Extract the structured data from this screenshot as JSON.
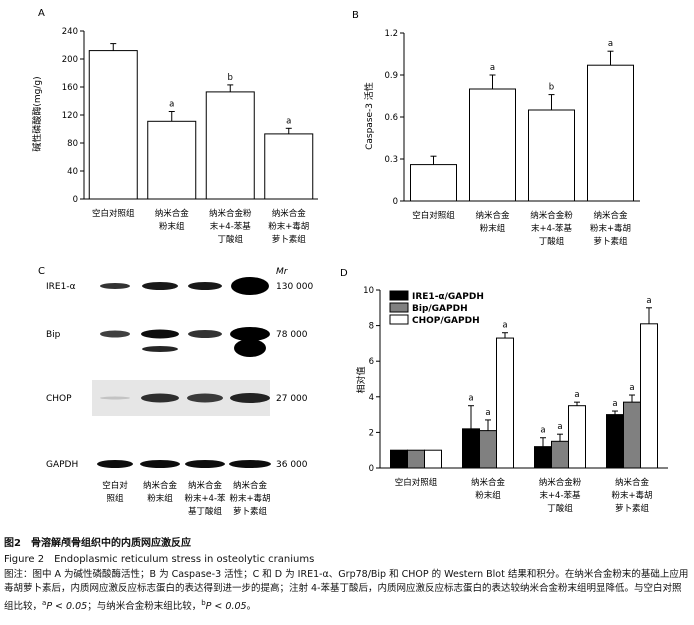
{
  "panels": {
    "A": {
      "letter": "A",
      "ylabel": "碱性磷酸酶(mg/g)",
      "chart_data": {
        "type": "bar",
        "ylabel": "碱性磷酸酶(mg/g)",
        "ylim": [
          0,
          240
        ],
        "yticks": [
          "0",
          "40",
          "80",
          "120",
          "160",
          "200",
          "240"
        ],
        "categories": [
          "空白对照组",
          "纳米合金粉末组",
          "纳米合金粉末+4-苯基丁酸组",
          "纳米合金粉末+毒胡萝卜素组"
        ],
        "category_lines": [
          [
            "空白对照组"
          ],
          [
            "纳米合金",
            "粉末组"
          ],
          [
            "纳米合金粉",
            "末+4-苯基",
            "丁酸组"
          ],
          [
            "纳米合金",
            "粉末+毒胡",
            "萝卜素组"
          ]
        ],
        "values": [
          212,
          111,
          153,
          93
        ],
        "errors": [
          10,
          14,
          10,
          8
        ],
        "markers": [
          "",
          "a",
          "b",
          "a"
        ]
      }
    },
    "B": {
      "letter": "B",
      "ylabel": "Caspase-3 活性",
      "chart_data": {
        "type": "bar",
        "ylabel": "Caspase-3 活性",
        "ylim": [
          0,
          1.2
        ],
        "yticks": [
          "0",
          "0.3",
          "0.6",
          "0.9",
          "1.2"
        ],
        "categories": [
          "空白对照组",
          "纳米合金粉末组",
          "纳米合金粉末+4-苯基丁酸组",
          "纳米合金粉末+毒胡萝卜素组"
        ],
        "category_lines": [
          [
            "空白对照组"
          ],
          [
            "纳米合金",
            "粉末组"
          ],
          [
            "纳米合金粉",
            "末+4-苯基",
            "丁酸组"
          ],
          [
            "纳米合金",
            "粉末+毒胡",
            "萝卜素组"
          ]
        ],
        "values": [
          0.26,
          0.8,
          0.65,
          0.97
        ],
        "errors": [
          0.06,
          0.1,
          0.11,
          0.1
        ],
        "markers": [
          "",
          "a",
          "b",
          "a"
        ]
      }
    },
    "C": {
      "letter": "C",
      "mr_label": "Mr",
      "proteins": [
        {
          "name": "IRE1-α",
          "mw": "130 000"
        },
        {
          "name": "Bip",
          "mw": "78 000"
        },
        {
          "name": "CHOP",
          "mw": "27 000"
        },
        {
          "name": "GAPDH",
          "mw": "36 000"
        }
      ],
      "lanes": [
        [
          "空白对",
          "照组"
        ],
        [
          "纳米合金",
          "粉末组"
        ],
        [
          "纳米合金",
          "粉末+4-苯",
          "基丁酸组"
        ],
        [
          "纳米合金",
          "粉末+毒胡",
          "萝卜素组"
        ]
      ]
    },
    "D": {
      "letter": "D",
      "ylabel": "相对值",
      "chart_data": {
        "type": "bar",
        "ylabel": "相对值",
        "ylim": [
          0,
          10
        ],
        "yticks": [
          "0",
          "2",
          "4",
          "6",
          "8",
          "10"
        ],
        "categories": [
          "空白对照组",
          "纳米合金粉末组",
          "纳米合金粉末+4-苯基丁酸组",
          "纳米合金粉末+毒胡萝卜素组"
        ],
        "category_lines": [
          [
            "空白对照组"
          ],
          [
            "纳米合金",
            "粉末组"
          ],
          [
            "纳米合金粉",
            "末+4-苯基",
            "丁酸组"
          ],
          [
            "纳米合金",
            "粉末+毒胡",
            "萝卜素组"
          ]
        ],
        "series": [
          {
            "name": "IRE1-α/GAPDH",
            "color": "#000000",
            "values": [
              1.0,
              2.2,
              1.2,
              3.0
            ],
            "errors": [
              0,
              1.3,
              0.5,
              0.2
            ],
            "markers": [
              "",
              "a",
              "a",
              "a"
            ]
          },
          {
            "name": "Bip/GAPDH",
            "color": "#808080",
            "values": [
              1.0,
              2.1,
              1.5,
              3.7
            ],
            "errors": [
              0,
              0.6,
              0.4,
              0.4
            ],
            "markers": [
              "",
              "a",
              "a",
              "a"
            ]
          },
          {
            "name": "CHOP/GAPDH",
            "color": "#ffffff",
            "values": [
              1.0,
              7.3,
              3.5,
              8.1
            ],
            "errors": [
              0,
              0.3,
              0.2,
              0.9
            ],
            "markers": [
              "",
              "a",
              "a",
              "a"
            ]
          }
        ],
        "legend": "top-left"
      }
    }
  },
  "caption": {
    "title_cn": "图2　骨溶解颅骨组织中的内质网应激反应",
    "title_en": "Figure 2　Endoplasmic reticulum stress in osteolytic craniums",
    "note": "图注：图中 A 为碱性磷酸酶活性；B 为 Caspase-3 活性；C 和 D 为 IRE1-α、Grp78/Bip 和 CHOP 的 Western Blot 结果和积分。在纳米合金粉末的基础上应用毒胡萝卜素后，内质网应激反应标志蛋白的表达得到进一步的提高；注射 4-苯基丁酸后，内质网应激反应标志蛋白的表达较纳米合金粉末组明显降低。与空白对照组比较，",
    "p_a": "P < 0.05",
    "p_mid": "；与纳米合金粉末组比较，",
    "p_b": "P < 0.05",
    "p_end": "。"
  }
}
